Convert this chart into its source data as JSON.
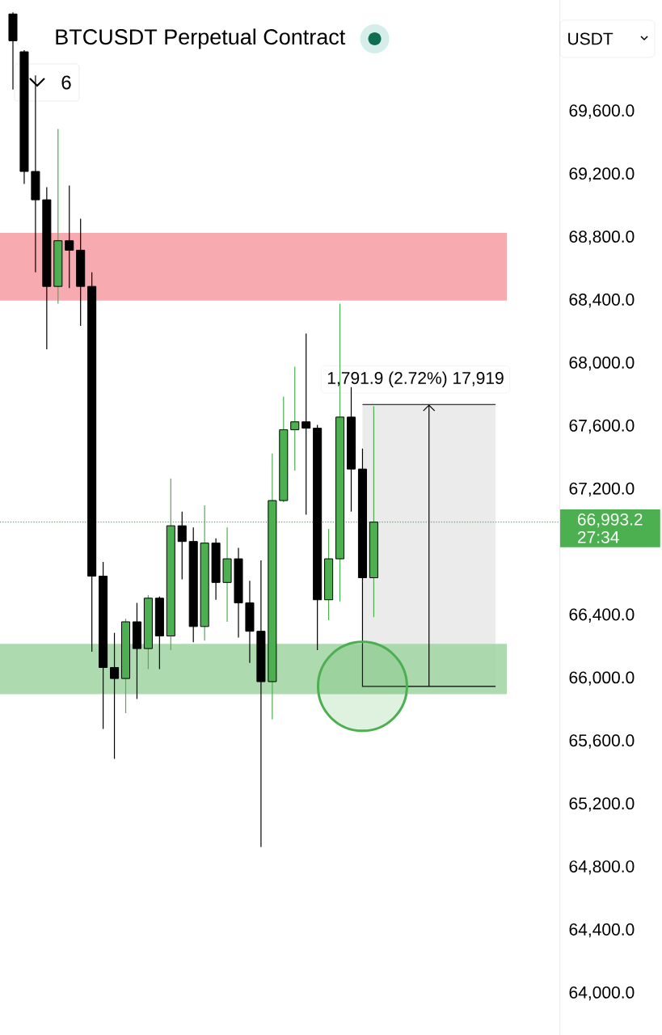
{
  "chart_data": {
    "type": "candlestick",
    "title": "BTCUSDT Perpetual Contract",
    "categories": [
      null,
      null,
      null,
      null,
      null,
      null,
      null,
      null,
      null,
      null,
      null,
      null,
      null,
      null,
      null,
      null,
      null,
      null,
      null,
      null,
      null,
      null,
      null,
      null,
      null,
      null,
      null,
      null,
      null,
      null,
      null,
      null,
      null,
      null,
      null,
      null,
      null,
      null,
      null,
      null,
      null,
      null,
      null,
      null,
      null,
      null,
      null,
      null,
      null
    ],
    "ohlc": [
      [
        70220,
        70230,
        69740,
        70050
      ],
      [
        69980,
        69990,
        69140,
        69220
      ],
      [
        69220,
        69830,
        68580,
        69040
      ],
      [
        69040,
        69120,
        68090,
        68490
      ],
      [
        68490,
        69490,
        68380,
        68780
      ],
      [
        68780,
        69130,
        68480,
        68720
      ],
      [
        68720,
        68920,
        68240,
        68490
      ],
      [
        68490,
        68580,
        66170,
        66650
      ],
      [
        66650,
        66740,
        65680,
        66070
      ],
      [
        66070,
        66290,
        65490,
        66000
      ],
      [
        66000,
        66380,
        65780,
        66360
      ],
      [
        66360,
        66480,
        65870,
        66190
      ],
      [
        66190,
        66530,
        66060,
        66510
      ],
      [
        66510,
        66520,
        66060,
        66270
      ],
      [
        66270,
        67270,
        66180,
        66970
      ],
      [
        66970,
        67060,
        66630,
        66870
      ],
      [
        66870,
        66960,
        66230,
        66330
      ],
      [
        66330,
        67100,
        66240,
        66860
      ],
      [
        66860,
        66890,
        66500,
        66610
      ],
      [
        66610,
        66960,
        66360,
        66760
      ],
      [
        66760,
        66830,
        66260,
        66480
      ],
      [
        66480,
        66620,
        66100,
        66300
      ],
      [
        66300,
        66750,
        64930,
        65980
      ],
      [
        65980,
        67430,
        65740,
        67130
      ],
      [
        67130,
        67790,
        67120,
        67580
      ],
      [
        67580,
        67980,
        67320,
        67630
      ],
      [
        67630,
        68190,
        67040,
        67590
      ],
      [
        67590,
        67610,
        66180,
        66500
      ],
      [
        66500,
        66950,
        66370,
        66760
      ],
      [
        66760,
        68380,
        66490,
        67660
      ],
      [
        67660,
        67850,
        67060,
        67330
      ],
      [
        67330,
        67460,
        66620,
        66640
      ],
      [
        66640,
        67730,
        66390,
        66993.2
      ],
      null,
      null,
      null,
      null,
      null,
      null,
      null,
      null,
      null,
      null,
      null,
      null,
      null,
      null,
      null,
      null
    ],
    "colors": [
      "#000000",
      "#000000",
      "#000000",
      "#000000",
      "#4caf50",
      "#000000",
      "#000000",
      "#000000",
      "#000000",
      "#000000",
      "#4caf50",
      "#000000",
      "#4caf50",
      "#000000",
      "#4caf50",
      "#000000",
      "#000000",
      "#4caf50",
      "#000000",
      "#4caf50",
      "#000000",
      "#000000",
      "#000000",
      "#4caf50",
      "#4caf50",
      "#4caf50",
      "#000000",
      "#000000",
      "#4caf50",
      "#4caf50",
      "#000000",
      "#000000",
      "#4caf50",
      null,
      null,
      null,
      null,
      null,
      null,
      null,
      null,
      null,
      null,
      null,
      null,
      null,
      null,
      null,
      null
    ],
    "ylim": [
      63736,
      70309
    ],
    "yticks": [
      {
        "value": 64000,
        "label": "64,000.0"
      },
      {
        "value": 64400,
        "label": "64,400.0"
      },
      {
        "value": 64800,
        "label": "64,800.0"
      },
      {
        "value": 65200,
        "label": "65,200.0"
      },
      {
        "value": 65600,
        "label": "65,600.0"
      },
      {
        "value": 66000,
        "label": "66,000.0"
      },
      {
        "value": 66400,
        "label": "66,400.0"
      },
      {
        "value": 67200,
        "label": "67,200.0"
      },
      {
        "value": 67600,
        "label": "67,600.0"
      },
      {
        "value": 68000,
        "label": "68,000.0"
      },
      {
        "value": 68400,
        "label": "68,400.0"
      },
      {
        "value": 68800,
        "label": "68,800.0"
      },
      {
        "value": 69200,
        "label": "69,200.0"
      },
      {
        "value": 69600,
        "label": "69,600.0"
      }
    ],
    "bands": [
      {
        "axis": "y",
        "from": 65950,
        "to": 67740,
        "color": "#ebebeb",
        "label": "1,791.9 (2.72%) 17,919"
      },
      {
        "axis": "y",
        "from": 68400,
        "to": 68830,
        "color": "#f7a1a8"
      },
      {
        "axis": "y",
        "from": 65900,
        "to": 66220,
        "color": "#a5d6a7"
      }
    ],
    "ref_lines": [
      {
        "axis": "y",
        "value": 66993.2,
        "label": "66,993.2",
        "color": "#4caf50",
        "line_style": "dotted"
      }
    ],
    "annotations": [
      "6",
      "USDT",
      "27:34"
    ]
  }
}
